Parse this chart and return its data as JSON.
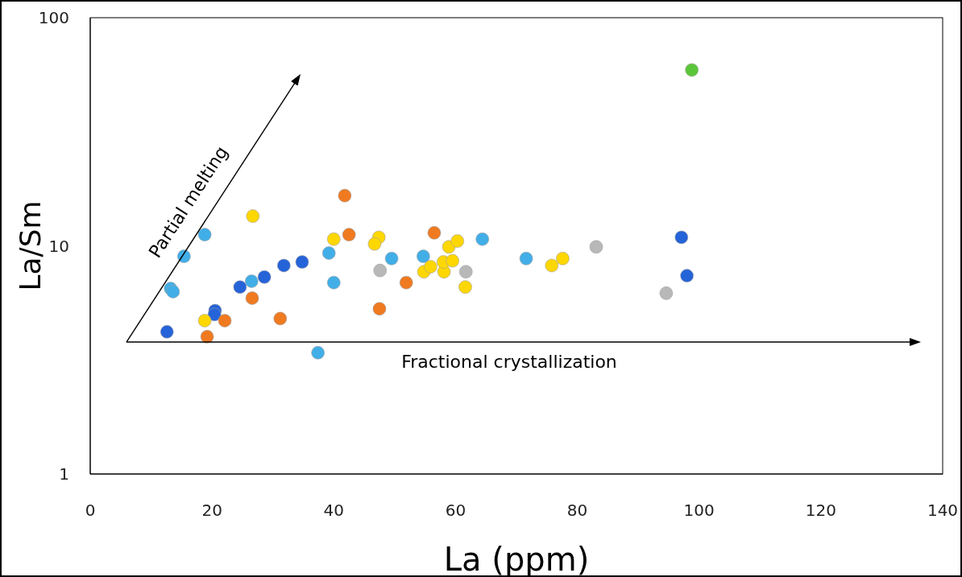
{
  "chart_data": {
    "type": "scatter",
    "xlabel": "La (ppm)",
    "ylabel": "La/Sm",
    "xlim": [
      0,
      140
    ],
    "xticks": [
      0,
      20,
      40,
      60,
      80,
      100,
      120,
      140
    ],
    "ylim": [
      1,
      100
    ],
    "yticks": [
      1,
      10,
      100
    ],
    "log": "y",
    "marker": "circle",
    "annotations": [
      "Partial melting",
      "Fractional crystallization"
    ],
    "series": [
      {
        "color": "#2563d9",
        "x": [
          12.6,
          20.5,
          20.4,
          24.6,
          28.6,
          31.8,
          34.8,
          97.1,
          98.0
        ],
        "values": [
          4.2,
          5.2,
          5.0,
          6.6,
          7.3,
          8.2,
          8.5,
          10.9,
          7.4
        ]
      },
      {
        "color": "#41aee8",
        "x": [
          13.2,
          13.6,
          15.4,
          18.8,
          26.5,
          37.4,
          39.2,
          40.0,
          49.5,
          54.7,
          64.4,
          71.6
        ],
        "values": [
          6.5,
          6.3,
          9.0,
          11.2,
          7.0,
          3.4,
          9.3,
          6.9,
          8.8,
          9.0,
          10.7,
          8.8
        ]
      },
      {
        "color": "#f07a20",
        "x": [
          41.8,
          42.5,
          26.6,
          22.1,
          19.2,
          31.2,
          56.5,
          51.9,
          47.5
        ],
        "values": [
          16.6,
          11.2,
          5.9,
          4.7,
          4.0,
          4.8,
          11.4,
          6.9,
          5.3
        ]
      },
      {
        "color": "#ffd700",
        "x": [
          26.7,
          18.8,
          40.0,
          47.4,
          46.7,
          54.8,
          55.9,
          58.1,
          58.0,
          58.9,
          59.5,
          60.3,
          61.6,
          75.8,
          77.6
        ],
        "values": [
          13.5,
          4.7,
          10.7,
          10.9,
          10.2,
          7.7,
          8.1,
          7.7,
          8.5,
          9.9,
          8.6,
          10.5,
          6.6,
          8.2,
          8.8
        ]
      },
      {
        "color": "#b8b8b8",
        "x": [
          47.6,
          61.7,
          83.1,
          94.6
        ],
        "values": [
          7.8,
          7.7,
          9.9,
          6.2
        ]
      },
      {
        "color": "#5cc63a",
        "x": [
          98.8
        ],
        "values": [
          59
        ]
      }
    ]
  }
}
